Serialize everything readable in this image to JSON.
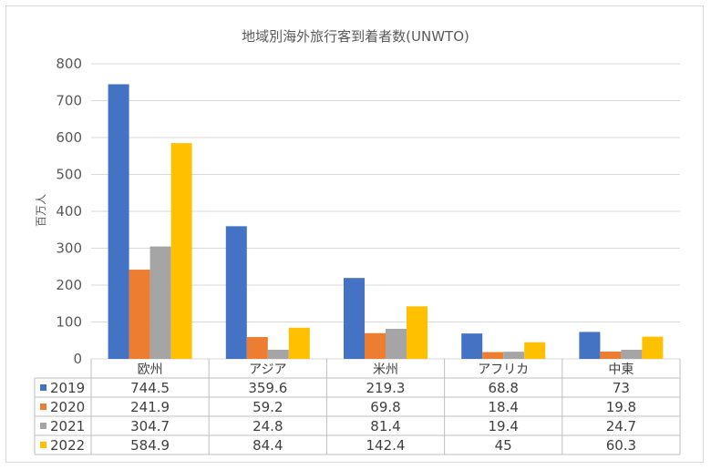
{
  "chart_data": {
    "type": "bar",
    "title": "地域別海外旅行客到着者数(UNWTO)",
    "ylabel": "百万人",
    "xlabel": "",
    "ylim": [
      0,
      800
    ],
    "yticks": [
      0,
      100,
      200,
      300,
      400,
      500,
      600,
      700,
      800
    ],
    "grid": true,
    "legend": "data-table-bottom",
    "categories": [
      "欧州",
      "アジア",
      "米州",
      "アフリカ",
      "中東"
    ],
    "series": [
      {
        "name": "2019",
        "color": "#4472C4",
        "values": [
          744.5,
          359.6,
          219.3,
          68.8,
          73
        ],
        "labels": [
          "744.5",
          "359.6",
          "219.3",
          "68.8",
          "73"
        ]
      },
      {
        "name": "2020",
        "color": "#ED7D31",
        "values": [
          241.9,
          59.2,
          69.8,
          18.4,
          19.8
        ],
        "labels": [
          "241.9",
          "59.2",
          "69.8",
          "18.4",
          "19.8"
        ]
      },
      {
        "name": "2021",
        "color": "#A5A5A5",
        "values": [
          304.7,
          24.8,
          81.4,
          19.4,
          24.7
        ],
        "labels": [
          "304.7",
          "24.8",
          "81.4",
          "19.4",
          "24.7"
        ]
      },
      {
        "name": "2022",
        "color": "#FFC000",
        "values": [
          584.9,
          84.4,
          142.4,
          45,
          60.3
        ],
        "labels": [
          "584.9",
          "84.4",
          "142.4",
          "45",
          "60.3"
        ]
      }
    ]
  }
}
